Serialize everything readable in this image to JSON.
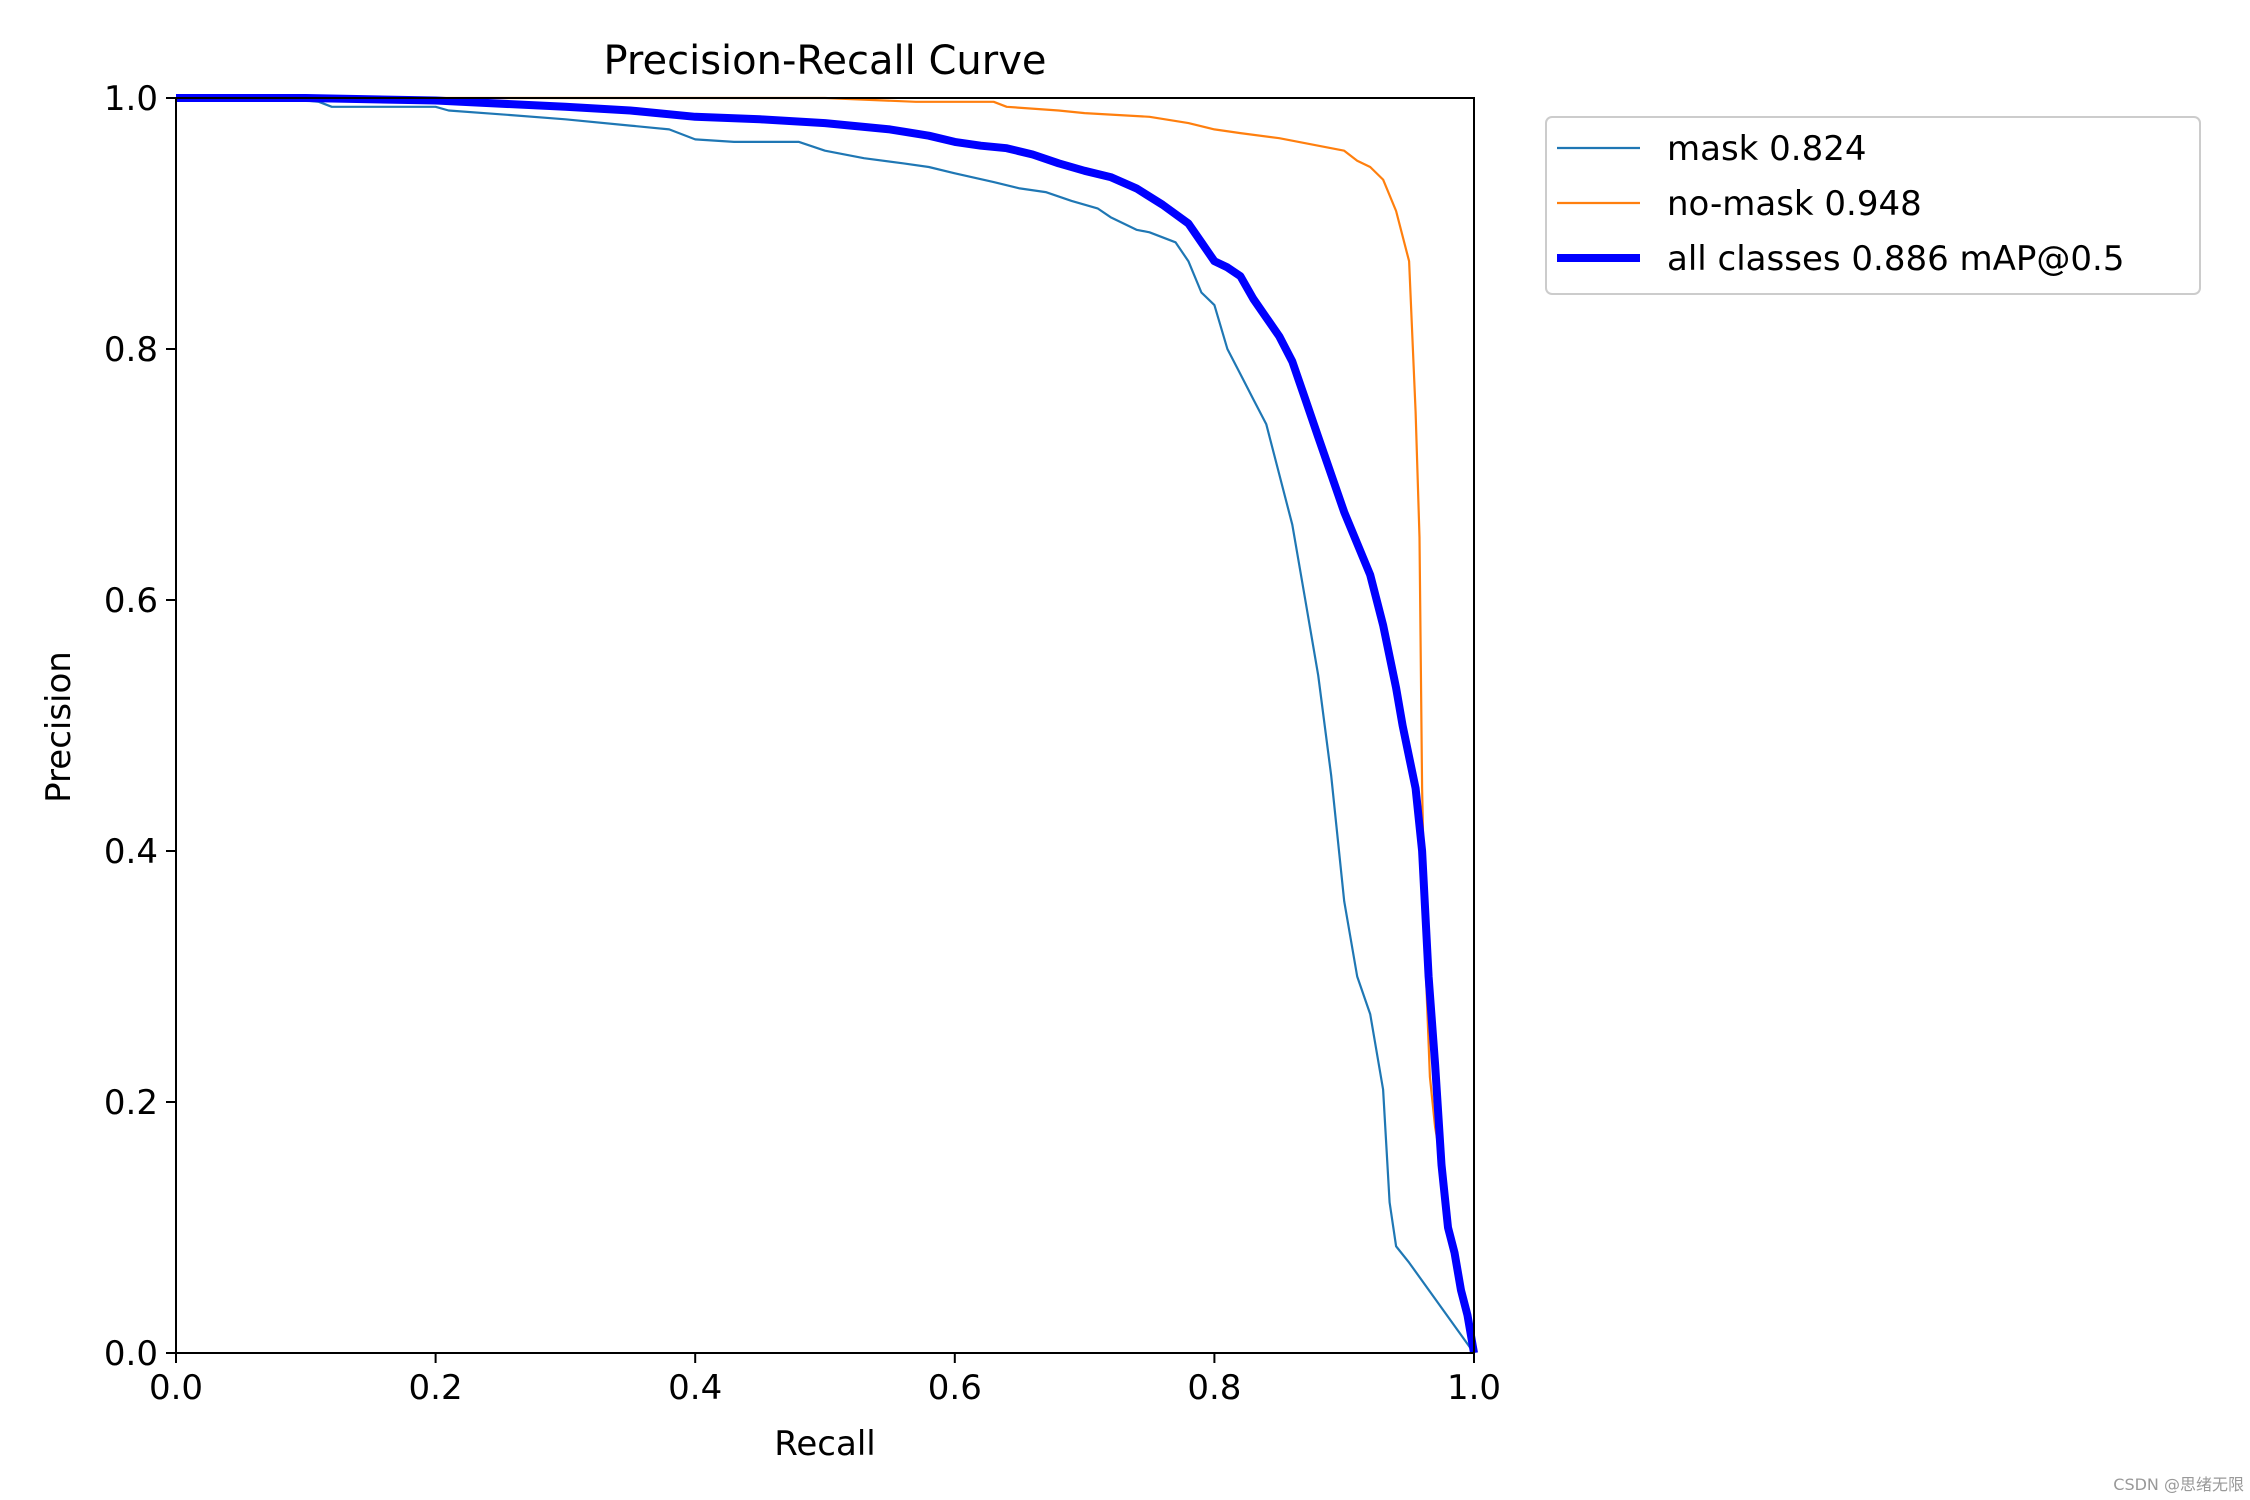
{
  "watermark": "CSDN @思绪无限",
  "chart_data": {
    "type": "line",
    "title": "Precision-Recall Curve",
    "xlabel": "Recall",
    "ylabel": "Precision",
    "xlim": [
      0,
      1
    ],
    "ylim": [
      0,
      1
    ],
    "x_ticks": [
      "0.0",
      "0.2",
      "0.4",
      "0.6",
      "0.8",
      "1.0"
    ],
    "y_ticks": [
      "0.0",
      "0.2",
      "0.4",
      "0.6",
      "0.8",
      "1.0"
    ],
    "grid": false,
    "legend_position": "outside-right-top",
    "series": [
      {
        "name": "mask 0.824",
        "color": "#1f77b4",
        "thick": false,
        "points": [
          [
            0,
            1.0
          ],
          [
            0.08,
            1.0
          ],
          [
            0.11,
            0.997
          ],
          [
            0.12,
            0.993
          ],
          [
            0.2,
            0.993
          ],
          [
            0.21,
            0.99
          ],
          [
            0.25,
            0.987
          ],
          [
            0.3,
            0.983
          ],
          [
            0.35,
            0.978
          ],
          [
            0.38,
            0.975
          ],
          [
            0.4,
            0.967
          ],
          [
            0.43,
            0.965
          ],
          [
            0.48,
            0.965
          ],
          [
            0.5,
            0.958
          ],
          [
            0.53,
            0.952
          ],
          [
            0.56,
            0.948
          ],
          [
            0.58,
            0.945
          ],
          [
            0.6,
            0.94
          ],
          [
            0.63,
            0.933
          ],
          [
            0.65,
            0.928
          ],
          [
            0.67,
            0.925
          ],
          [
            0.69,
            0.918
          ],
          [
            0.71,
            0.912
          ],
          [
            0.72,
            0.905
          ],
          [
            0.74,
            0.895
          ],
          [
            0.75,
            0.893
          ],
          [
            0.76,
            0.889
          ],
          [
            0.77,
            0.885
          ],
          [
            0.78,
            0.87
          ],
          [
            0.79,
            0.845
          ],
          [
            0.8,
            0.835
          ],
          [
            0.81,
            0.8
          ],
          [
            0.82,
            0.78
          ],
          [
            0.83,
            0.76
          ],
          [
            0.84,
            0.74
          ],
          [
            0.85,
            0.7
          ],
          [
            0.86,
            0.66
          ],
          [
            0.87,
            0.6
          ],
          [
            0.88,
            0.54
          ],
          [
            0.89,
            0.46
          ],
          [
            0.9,
            0.36
          ],
          [
            0.91,
            0.3
          ],
          [
            0.92,
            0.27
          ],
          [
            0.93,
            0.21
          ],
          [
            0.935,
            0.12
          ],
          [
            0.94,
            0.085
          ],
          [
            0.95,
            0.072
          ],
          [
            1.0,
            0.0
          ]
        ]
      },
      {
        "name": "no-mask 0.948",
        "color": "#ff7f0e",
        "thick": false,
        "points": [
          [
            0,
            1.0
          ],
          [
            0.5,
            1.0
          ],
          [
            0.57,
            0.997
          ],
          [
            0.63,
            0.997
          ],
          [
            0.64,
            0.993
          ],
          [
            0.68,
            0.99
          ],
          [
            0.7,
            0.988
          ],
          [
            0.75,
            0.985
          ],
          [
            0.78,
            0.98
          ],
          [
            0.8,
            0.975
          ],
          [
            0.82,
            0.972
          ],
          [
            0.85,
            0.968
          ],
          [
            0.88,
            0.962
          ],
          [
            0.9,
            0.958
          ],
          [
            0.91,
            0.95
          ],
          [
            0.92,
            0.945
          ],
          [
            0.93,
            0.935
          ],
          [
            0.94,
            0.91
          ],
          [
            0.95,
            0.87
          ],
          [
            0.955,
            0.75
          ],
          [
            0.958,
            0.65
          ],
          [
            0.96,
            0.45
          ],
          [
            0.963,
            0.3
          ],
          [
            0.966,
            0.22
          ],
          [
            0.97,
            0.18
          ],
          [
            0.975,
            0.15
          ],
          [
            0.98,
            0.1
          ],
          [
            0.985,
            0.08
          ],
          [
            0.99,
            0.055
          ],
          [
            0.995,
            0.035
          ],
          [
            1.0,
            0.0
          ]
        ]
      },
      {
        "name": "all classes 0.886 mAP@0.5",
        "color": "#0000ff",
        "thick": true,
        "points": [
          [
            0,
            1.0
          ],
          [
            0.1,
            1.0
          ],
          [
            0.2,
            0.998
          ],
          [
            0.3,
            0.993
          ],
          [
            0.35,
            0.99
          ],
          [
            0.4,
            0.985
          ],
          [
            0.45,
            0.983
          ],
          [
            0.5,
            0.98
          ],
          [
            0.55,
            0.975
          ],
          [
            0.58,
            0.97
          ],
          [
            0.6,
            0.965
          ],
          [
            0.62,
            0.962
          ],
          [
            0.64,
            0.96
          ],
          [
            0.66,
            0.955
          ],
          [
            0.68,
            0.948
          ],
          [
            0.7,
            0.942
          ],
          [
            0.72,
            0.937
          ],
          [
            0.74,
            0.928
          ],
          [
            0.76,
            0.915
          ],
          [
            0.78,
            0.9
          ],
          [
            0.79,
            0.885
          ],
          [
            0.8,
            0.87
          ],
          [
            0.81,
            0.865
          ],
          [
            0.82,
            0.858
          ],
          [
            0.83,
            0.84
          ],
          [
            0.84,
            0.825
          ],
          [
            0.85,
            0.81
          ],
          [
            0.86,
            0.79
          ],
          [
            0.87,
            0.76
          ],
          [
            0.88,
            0.73
          ],
          [
            0.89,
            0.7
          ],
          [
            0.9,
            0.67
          ],
          [
            0.91,
            0.645
          ],
          [
            0.92,
            0.62
          ],
          [
            0.93,
            0.58
          ],
          [
            0.94,
            0.53
          ],
          [
            0.945,
            0.5
          ],
          [
            0.95,
            0.475
          ],
          [
            0.955,
            0.45
          ],
          [
            0.96,
            0.4
          ],
          [
            0.965,
            0.3
          ],
          [
            0.97,
            0.23
          ],
          [
            0.975,
            0.15
          ],
          [
            0.98,
            0.1
          ],
          [
            0.985,
            0.08
          ],
          [
            0.99,
            0.05
          ],
          [
            0.995,
            0.03
          ],
          [
            1.0,
            0.0
          ]
        ]
      }
    ]
  }
}
